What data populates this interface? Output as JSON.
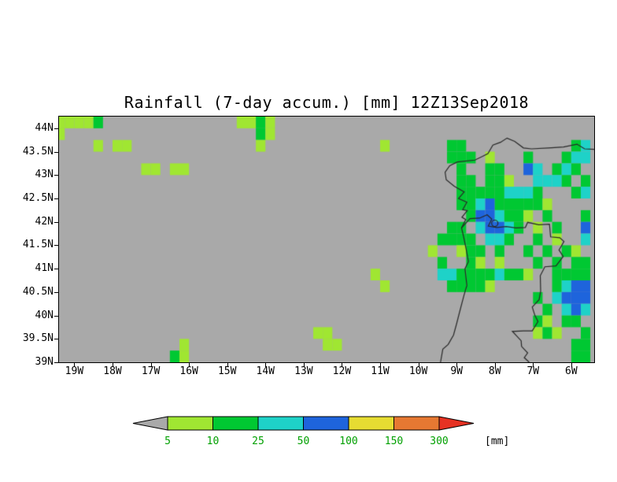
{
  "title": "Rainfall (7-day accum.) [mm] 12Z13Sep2018",
  "chart_data": {
    "type": "heatmap",
    "title": "Rainfall (7-day accum.) [mm] 12Z13Sep2018",
    "units": "mm",
    "lon_range": [
      -19.4,
      -5.4
    ],
    "lat_range": [
      39.0,
      44.25
    ],
    "background": "#a9a9a9",
    "palette": {
      "1": "#a0e632",
      "2": "#00c832",
      "3": "#1ed2c8",
      "4": "#1e64dc",
      "5": "#e6dc32",
      "6": "#e67832",
      "7": "#e63223"
    },
    "grid": {
      "lon0": -19.5,
      "lat0": 44.25,
      "dlon": 0.25,
      "dlat": 0.25,
      "legend": {
        ".": "< 5 mm",
        "1": "5-10 mm",
        "2": "10-25 mm",
        "3": "25-50 mm",
        "4": "50-100 mm"
      },
      "rows": [
        "11112..............1121.................................",
        "1....................21.................................",
        "....1.11.............1............1......22...........23",
        ".........................................222.1...2...233",
        ".........11.11............................2..22..43.232.",
        "..........................................22.221..3332.2",
        "..........................................222223332...23",
        "..........................................2234222221....",
        "...........................................2443221.2...2",
        ".........................................22.34432.1.2..4",
        "........................................2222.332..2.1..3",
        ".......................................1..122.2..2.2.21.",
        "........................................2..21.1...2.2.22",
        ".................................1......3322223221..2222",
        "..................................1......22221......2344",
        "..................................................2.3444",
        "...................................................2.343",
        "..................................................21.22.",
        "...........................11.....................121..2",
        ".............1..............11........................22",
        "............21........................................22"
      ]
    },
    "x_axis": {
      "ticks": [
        {
          "v": -19,
          "label": "19W"
        },
        {
          "v": -18,
          "label": "18W"
        },
        {
          "v": -17,
          "label": "17W"
        },
        {
          "v": -16,
          "label": "16W"
        },
        {
          "v": -15,
          "label": "15W"
        },
        {
          "v": -14,
          "label": "14W"
        },
        {
          "v": -13,
          "label": "13W"
        },
        {
          "v": -12,
          "label": "12W"
        },
        {
          "v": -11,
          "label": "11W"
        },
        {
          "v": -10,
          "label": "10W"
        },
        {
          "v": -9,
          "label": "9W"
        },
        {
          "v": -8,
          "label": "8W"
        },
        {
          "v": -7,
          "label": "7W"
        },
        {
          "v": -6,
          "label": "6W"
        }
      ]
    },
    "y_axis": {
      "ticks": [
        {
          "v": 44,
          "label": "44N"
        },
        {
          "v": 43.5,
          "label": "43.5N"
        },
        {
          "v": 43,
          "label": "43N"
        },
        {
          "v": 42.5,
          "label": "42.5N"
        },
        {
          "v": 42,
          "label": "42N"
        },
        {
          "v": 41.5,
          "label": "41.5N"
        },
        {
          "v": 41,
          "label": "41N"
        },
        {
          "v": 40.5,
          "label": "40.5N"
        },
        {
          "v": 40,
          "label": "40N"
        },
        {
          "v": 39.5,
          "label": "39.5N"
        },
        {
          "v": 39,
          "label": "39N"
        }
      ]
    },
    "map": {
      "line_color": "#282828",
      "coastline": [
        [
          -9.42,
          39.0
        ],
        [
          -9.36,
          39.28
        ],
        [
          -9.22,
          39.38
        ],
        [
          -9.08,
          39.58
        ],
        [
          -9.0,
          39.82
        ],
        [
          -8.9,
          40.14
        ],
        [
          -8.8,
          40.45
        ],
        [
          -8.73,
          40.64
        ],
        [
          -8.78,
          41.0
        ],
        [
          -8.69,
          41.15
        ],
        [
          -8.75,
          41.42
        ],
        [
          -8.82,
          41.7
        ],
        [
          -8.87,
          41.87
        ],
        [
          -8.76,
          42.05
        ],
        [
          -8.86,
          42.1
        ],
        [
          -8.72,
          42.24
        ],
        [
          -8.84,
          42.26
        ],
        [
          -8.73,
          42.42
        ],
        [
          -8.95,
          42.5
        ],
        [
          -8.8,
          42.64
        ],
        [
          -9.06,
          42.76
        ],
        [
          -9.27,
          42.9
        ],
        [
          -9.3,
          43.06
        ],
        [
          -9.18,
          43.2
        ],
        [
          -8.98,
          43.28
        ],
        [
          -8.52,
          43.32
        ],
        [
          -8.32,
          43.4
        ],
        [
          -8.18,
          43.46
        ],
        [
          -8.05,
          43.64
        ],
        [
          -7.85,
          43.7
        ],
        [
          -7.68,
          43.79
        ],
        [
          -7.48,
          43.72
        ],
        [
          -7.25,
          43.58
        ],
        [
          -7.04,
          43.56
        ],
        [
          -6.6,
          43.58
        ],
        [
          -6.2,
          43.6
        ],
        [
          -5.85,
          43.66
        ],
        [
          -5.65,
          43.56
        ],
        [
          -5.38,
          43.55
        ]
      ],
      "border": [
        [
          -8.87,
          41.87
        ],
        [
          -8.65,
          42.07
        ],
        [
          -8.4,
          42.08
        ],
        [
          -8.2,
          42.15
        ],
        [
          -8.08,
          42.06
        ],
        [
          -8.17,
          41.91
        ],
        [
          -7.95,
          41.88
        ],
        [
          -7.7,
          41.9
        ],
        [
          -7.45,
          41.87
        ],
        [
          -7.2,
          41.88
        ],
        [
          -7.14,
          41.99
        ],
        [
          -6.85,
          41.94
        ],
        [
          -6.57,
          41.95
        ],
        [
          -6.54,
          41.68
        ],
        [
          -6.3,
          41.66
        ],
        [
          -6.19,
          41.58
        ],
        [
          -6.32,
          41.4
        ],
        [
          -6.21,
          41.26
        ],
        [
          -6.4,
          41.06
        ],
        [
          -6.69,
          41.04
        ],
        [
          -6.81,
          40.85
        ],
        [
          -6.8,
          40.52
        ],
        [
          -6.84,
          40.34
        ],
        [
          -7.02,
          40.18
        ],
        [
          -6.95,
          40.0
        ],
        [
          -6.87,
          39.87
        ],
        [
          -7.02,
          39.67
        ],
        [
          -7.25,
          39.67
        ],
        [
          -7.54,
          39.66
        ],
        [
          -7.31,
          39.46
        ],
        [
          -7.3,
          39.34
        ],
        [
          -7.14,
          39.2
        ],
        [
          -7.23,
          39.1
        ],
        [
          -7.1,
          39.0
        ]
      ],
      "circle": [
        -8.0,
        41.97
      ]
    }
  },
  "colorbar": {
    "labels": [
      "5",
      "10",
      "25",
      "50",
      "100",
      "150",
      "300"
    ],
    "colors": [
      "#a9a9a9",
      "#a0e632",
      "#00c832",
      "#1ed2c8",
      "#1e64dc",
      "#e6dc32",
      "#e67832",
      "#e63223"
    ],
    "unit": "[mm]",
    "label_color": "#00a000",
    "outline": "#000000"
  }
}
